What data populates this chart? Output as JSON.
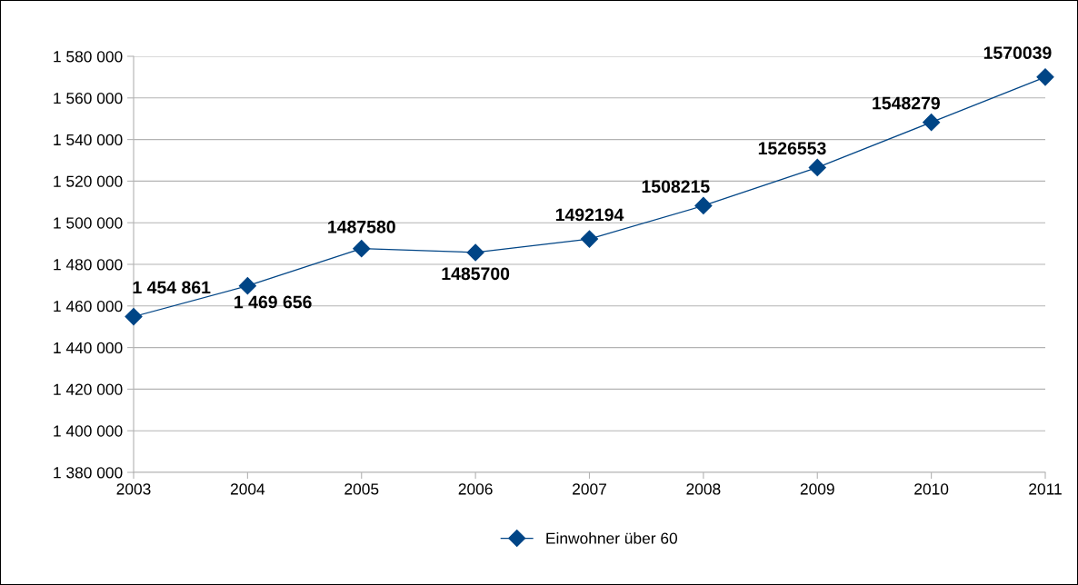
{
  "chart_data": {
    "type": "line",
    "x": [
      2003,
      2004,
      2005,
      2006,
      2007,
      2008,
      2009,
      2010,
      2011
    ],
    "series": [
      {
        "name": "Einwohner über 60",
        "color": "#004586",
        "values": [
          1454861,
          1469656,
          1487580,
          1485700,
          1492194,
          1508215,
          1526553,
          1548279,
          1570039
        ],
        "value_labels": [
          "1 454 861",
          "1 469 656",
          "1487580",
          "1485700",
          "1492194",
          "1508215",
          "1526553",
          "1548279",
          "1570039"
        ]
      }
    ],
    "xlim": [
      2003,
      2011
    ],
    "xticks": [
      2003,
      2004,
      2005,
      2006,
      2007,
      2008,
      2009,
      2010,
      2011
    ],
    "ylim": [
      1380000,
      1580000
    ],
    "yticks": [
      {
        "value": 1380000,
        "label": "1 380 000"
      },
      {
        "value": 1400000,
        "label": "1 400 000"
      },
      {
        "value": 1420000,
        "label": "1 420 000"
      },
      {
        "value": 1440000,
        "label": "1 440 000"
      },
      {
        "value": 1460000,
        "label": "1 460 000"
      },
      {
        "value": 1480000,
        "label": "1 480 000"
      },
      {
        "value": 1500000,
        "label": "1 500 000"
      },
      {
        "value": 1520000,
        "label": "1 520 000"
      },
      {
        "value": 1540000,
        "label": "1 540 000"
      },
      {
        "value": 1560000,
        "label": "1 560 000"
      },
      {
        "value": 1580000,
        "label": "1 580 000"
      }
    ],
    "grid": "y",
    "legend": "bottom",
    "marker": "diamond",
    "line_style": "solid"
  }
}
